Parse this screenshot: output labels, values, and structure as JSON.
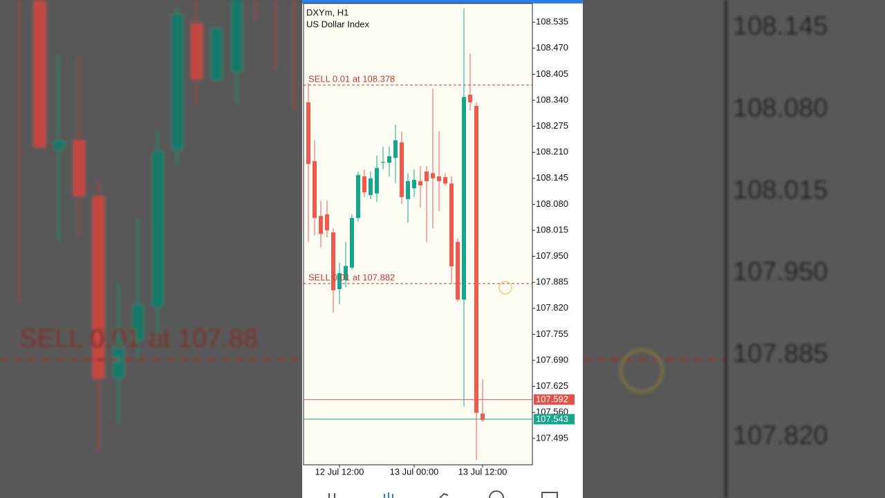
{
  "chart_data": {
    "type": "candlestick",
    "title": "DXYm, H1",
    "subtitle": "US Dollar Index",
    "categories": [
      null,
      null,
      null,
      null,
      null,
      "12 Jul 12:00",
      null,
      null,
      null,
      null,
      null,
      null,
      null,
      null,
      null,
      null,
      null,
      "13 Jul 00:00",
      null,
      null,
      null,
      null,
      null,
      null,
      null,
      null,
      null,
      null,
      "13 Jul 12:00"
    ],
    "open": [
      108.335,
      108.188,
      108.051,
      108.055,
      108.01,
      107.868,
      107.891,
      107.922,
      108.046,
      108.15,
      108.103,
      108.107,
      108.184,
      108.184,
      108.196,
      108.235,
      108.093,
      108.12,
      108.138,
      108.162,
      108.158,
      108.15,
      108.148,
      108.132,
      107.986,
      107.842,
      108.354,
      108.326,
      107.557
    ],
    "high": [
      108.383,
      108.24,
      108.089,
      108.089,
      108.02,
      107.934,
      107.986,
      108.055,
      108.162,
      108.167,
      108.162,
      108.202,
      108.224,
      108.224,
      108.279,
      108.262,
      108.158,
      108.167,
      108.176,
      108.176,
      108.369,
      108.262,
      108.158,
      108.15,
      107.994,
      108.57,
      108.457,
      108.335,
      107.643
    ],
    "low": [
      107.986,
      108.003,
      107.972,
      107.997,
      107.809,
      107.83,
      107.873,
      107.917,
      108.037,
      108.098,
      108.093,
      108.086,
      108.167,
      108.15,
      108.133,
      108.081,
      108.034,
      108.098,
      108.072,
      107.986,
      108.02,
      108.063,
      108.127,
      107.882,
      107.837,
      107.574,
      108.314,
      107.441,
      107.536
    ],
    "close": [
      108.181,
      108.046,
      108.006,
      108.015,
      107.865,
      107.908,
      107.926,
      108.046,
      108.153,
      108.11,
      108.145,
      108.171,
      108.186,
      108.2,
      108.24,
      108.098,
      108.138,
      108.141,
      108.127,
      108.138,
      108.145,
      108.138,
      108.132,
      107.925,
      107.842,
      108.348,
      108.335,
      107.559,
      107.541
    ],
    "up_color": "#16a68c",
    "down_color": "#ef5a4f",
    "ylim": [
      107.429,
      108.582
    ],
    "yticks": [
      108.535,
      {
        "value": 108.47,
        "label": "108.470"
      },
      108.405,
      {
        "value": 108.34,
        "label": "108.340"
      },
      108.275,
      {
        "value": 108.21,
        "label": "108.210"
      },
      108.145,
      {
        "value": 108.08,
        "label": "108.080"
      },
      108.015,
      {
        "value": 107.95,
        "label": "107.950"
      },
      107.885,
      {
        "value": 107.82,
        "label": "107.820"
      },
      107.755,
      {
        "value": 107.69,
        "label": "107.690"
      },
      107.625,
      {
        "value": 107.56,
        "label": "107.560"
      },
      107.495
    ],
    "orders": [
      {
        "label": "SELL 0.01 at 108.378",
        "value": 108.378
      },
      {
        "label": "SELL 0.01 at 107.882",
        "value": 107.882
      }
    ],
    "bid": 107.592,
    "ask": 107.543,
    "bid_color": "#e0524a",
    "ask_color": "#16a68c"
  },
  "backdrop": {
    "order_label": "SELL 0.01 at 107.88",
    "prices": [
      108.145,
      {
        "value": 108.08,
        "label": "108.080"
      },
      108.015,
      {
        "value": 107.95,
        "label": "107.950"
      },
      107.885,
      {
        "value": 107.82,
        "label": "107.820"
      }
    ]
  }
}
